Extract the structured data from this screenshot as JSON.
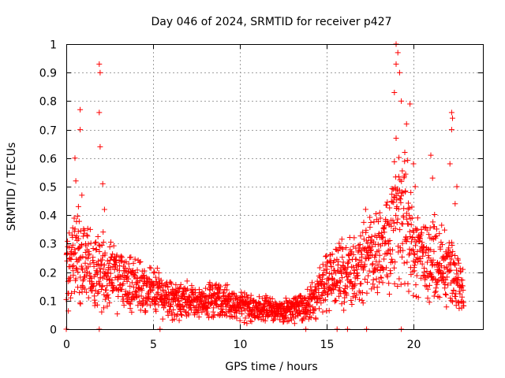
{
  "chart_data": {
    "type": "scatter",
    "title": "Day 046 of 2024, SRMTID for receiver p427",
    "xlabel": "GPS time / hours",
    "ylabel": "SRMTID / TECUs",
    "xlim": [
      0,
      24
    ],
    "ylim": [
      0,
      1
    ],
    "xticks": [
      0,
      5,
      10,
      15,
      20
    ],
    "xtick_labels": [
      "0",
      "5",
      "10",
      "15",
      "20"
    ],
    "yticks": [
      0,
      0.1,
      0.2,
      0.3,
      0.4,
      0.5,
      0.6,
      0.7,
      0.8,
      0.9,
      1
    ],
    "ytick_labels": [
      "0",
      "0.1",
      "0.2",
      "0.3",
      "0.4",
      "0.5",
      "0.6",
      "0.7",
      "0.8",
      "0.9",
      "1"
    ],
    "grid": true,
    "marker": "+",
    "color": "#ff0000",
    "series": [
      {
        "name": "SRMTID",
        "trend_hours": [
          0,
          0.5,
          1,
          1.5,
          2,
          2.5,
          3,
          4,
          5,
          6,
          7,
          8,
          9,
          10,
          11,
          12,
          13,
          13.8,
          14.5,
          15,
          16,
          17,
          18,
          18.5,
          19,
          19.5,
          20,
          20.5,
          21,
          21.5,
          22,
          22.5,
          22.9
        ],
        "trend_values": [
          0.2,
          0.28,
          0.26,
          0.22,
          0.2,
          0.2,
          0.18,
          0.16,
          0.13,
          0.1,
          0.1,
          0.1,
          0.1,
          0.08,
          0.07,
          0.07,
          0.07,
          0.08,
          0.12,
          0.18,
          0.2,
          0.23,
          0.27,
          0.3,
          0.38,
          0.36,
          0.3,
          0.26,
          0.24,
          0.24,
          0.22,
          0.18,
          0.14
        ],
        "peaks": [
          {
            "x": 0.5,
            "y": 0.6
          },
          {
            "x": 0.55,
            "y": 0.52
          },
          {
            "x": 0.8,
            "y": 0.77
          },
          {
            "x": 0.8,
            "y": 0.7
          },
          {
            "x": 0.7,
            "y": 0.43
          },
          {
            "x": 0.9,
            "y": 0.47
          },
          {
            "x": 1.9,
            "y": 0.93
          },
          {
            "x": 1.95,
            "y": 0.9
          },
          {
            "x": 1.9,
            "y": 0.76
          },
          {
            "x": 1.95,
            "y": 0.64
          },
          {
            "x": 2.1,
            "y": 0.51
          },
          {
            "x": 2.2,
            "y": 0.42
          },
          {
            "x": 19.0,
            "y": 1.0
          },
          {
            "x": 19.1,
            "y": 0.97
          },
          {
            "x": 19.0,
            "y": 0.93
          },
          {
            "x": 19.2,
            "y": 0.9
          },
          {
            "x": 18.9,
            "y": 0.83
          },
          {
            "x": 19.3,
            "y": 0.8
          },
          {
            "x": 19.8,
            "y": 0.79
          },
          {
            "x": 19.6,
            "y": 0.72
          },
          {
            "x": 19.0,
            "y": 0.67
          },
          {
            "x": 19.5,
            "y": 0.62
          },
          {
            "x": 20.0,
            "y": 0.58
          },
          {
            "x": 20.1,
            "y": 0.5
          },
          {
            "x": 22.2,
            "y": 0.76
          },
          {
            "x": 22.25,
            "y": 0.74
          },
          {
            "x": 22.2,
            "y": 0.7
          },
          {
            "x": 22.1,
            "y": 0.58
          },
          {
            "x": 21.0,
            "y": 0.61
          },
          {
            "x": 21.1,
            "y": 0.53
          },
          {
            "x": 22.5,
            "y": 0.5
          },
          {
            "x": 22.4,
            "y": 0.44
          }
        ],
        "zeros": [
          0,
          1.9,
          5.4,
          13.8,
          15.6,
          16.2,
          17.3,
          19.3
        ]
      }
    ]
  }
}
